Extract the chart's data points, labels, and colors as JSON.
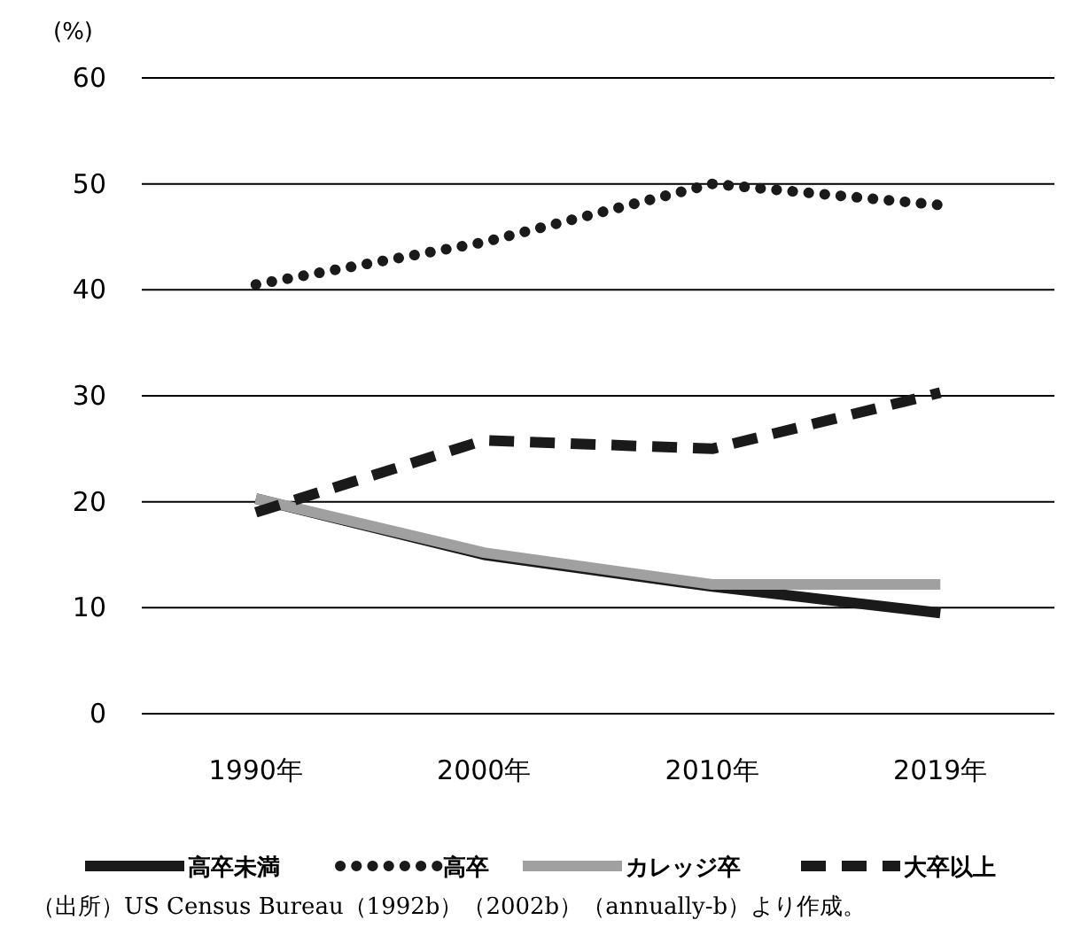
{
  "chart_data": {
    "type": "line",
    "ylabel": "(%)",
    "categories": [
      "1990年",
      "2000年",
      "2010年",
      "2019年"
    ],
    "ylim": [
      0,
      60
    ],
    "yticks": [
      0,
      10,
      20,
      30,
      40,
      50,
      60
    ],
    "grid": "y",
    "legend": "bottom",
    "marker": "none",
    "series": [
      {
        "name": "高卒未満",
        "color": "#1a1a1a",
        "line_style": "solid",
        "values": [
          20.3,
          15,
          12,
          9.5
        ]
      },
      {
        "name": "高卒",
        "color": "#1a1a1a",
        "line_style": "dotted",
        "values": [
          40.5,
          44.5,
          50,
          48
        ]
      },
      {
        "name": "カレッジ卒",
        "color": "#a0a0a0",
        "line_style": "solid",
        "values": [
          20.3,
          15.2,
          12.2,
          12.2
        ]
      },
      {
        "name": "大卒以上",
        "color": "#1a1a1a",
        "line_style": "dashed",
        "values": [
          19,
          25.8,
          25,
          30.3
        ]
      }
    ],
    "annotations": [
      "（出所）US Census Bureau（1992b）（2002b）（annually-b）より作成。"
    ]
  }
}
